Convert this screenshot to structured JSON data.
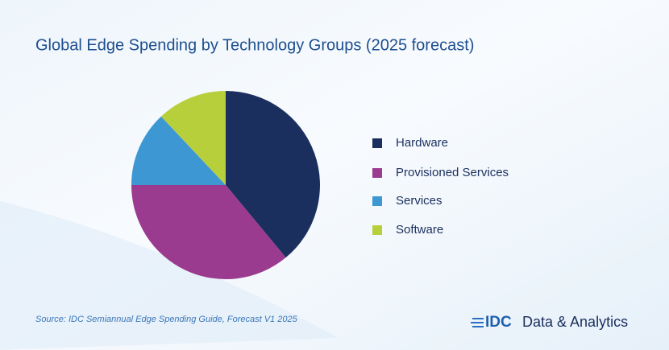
{
  "chart_data": {
    "type": "pie",
    "title": "Global Edge Spending by Technology Groups (2025 forecast)",
    "categories": [
      "Hardware",
      "Provisioned Services",
      "Services",
      "Software"
    ],
    "values": [
      39,
      36,
      13,
      12
    ],
    "colors": [
      "#1b2f5e",
      "#9b3b8f",
      "#3d97d3",
      "#b8cf3c"
    ],
    "start_angle": 0,
    "direction": "clockwise",
    "legend": "right",
    "source": "Source: IDC Semiannual Edge Spending Guide, Forecast V1 2025",
    "brand": "IDC",
    "brand_tagline": "Data & Analytics"
  }
}
